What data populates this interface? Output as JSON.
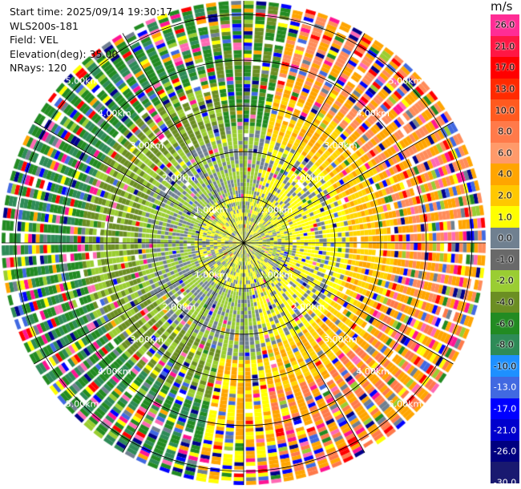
{
  "header": {
    "start_time": "Start time: 2025/09/14 19:30:17",
    "instrument": "WLS200s-181",
    "field": "Field: VEL",
    "elevation": "Elevation(deg): 35.00",
    "nrays": "NRays: 120"
  },
  "colorbar": {
    "unit": "m/s",
    "ticks": [
      "26.0",
      "21.0",
      "17.0",
      "13.0",
      "10.0",
      "8.0",
      "6.0",
      "4.0",
      "2.0",
      "1.0",
      "0.0",
      "-1.0",
      "-2.0",
      "-4.0",
      "-6.0",
      "-8.0",
      "-10.0",
      "-13.0",
      "-17.0",
      "-21.0",
      "-26.0",
      "-30.0"
    ],
    "colors": [
      "#ff2d95",
      "#ff1744",
      "#ff0000",
      "#ff2a00",
      "#ff5a1f",
      "#ff7a4a",
      "#ff9a6a",
      "#ffa500",
      "#ffc800",
      "#ffff00",
      "#708090",
      "#696969",
      "#9acd32",
      "#6b8e23",
      "#228b22",
      "#2e8b57",
      "#1e90ff",
      "#4169e1",
      "#0000ff",
      "#0000cd",
      "#000080",
      "#191970"
    ]
  },
  "chart_data": {
    "type": "heatmap",
    "projection": "polar PPI",
    "field": "VEL",
    "units": "m/s",
    "nrays": 120,
    "value_range": [
      -30.0,
      26.0
    ],
    "range_rings_km": [
      1.0,
      2.0,
      3.0,
      4.0,
      5.0
    ],
    "ring_labels": [
      "1.00km",
      "2.00km",
      "3.00km",
      "4.00km",
      "5.00km"
    ],
    "spokes_deg": [
      0,
      30,
      60,
      90,
      120,
      150
    ],
    "max_range_km": 5.3
  }
}
